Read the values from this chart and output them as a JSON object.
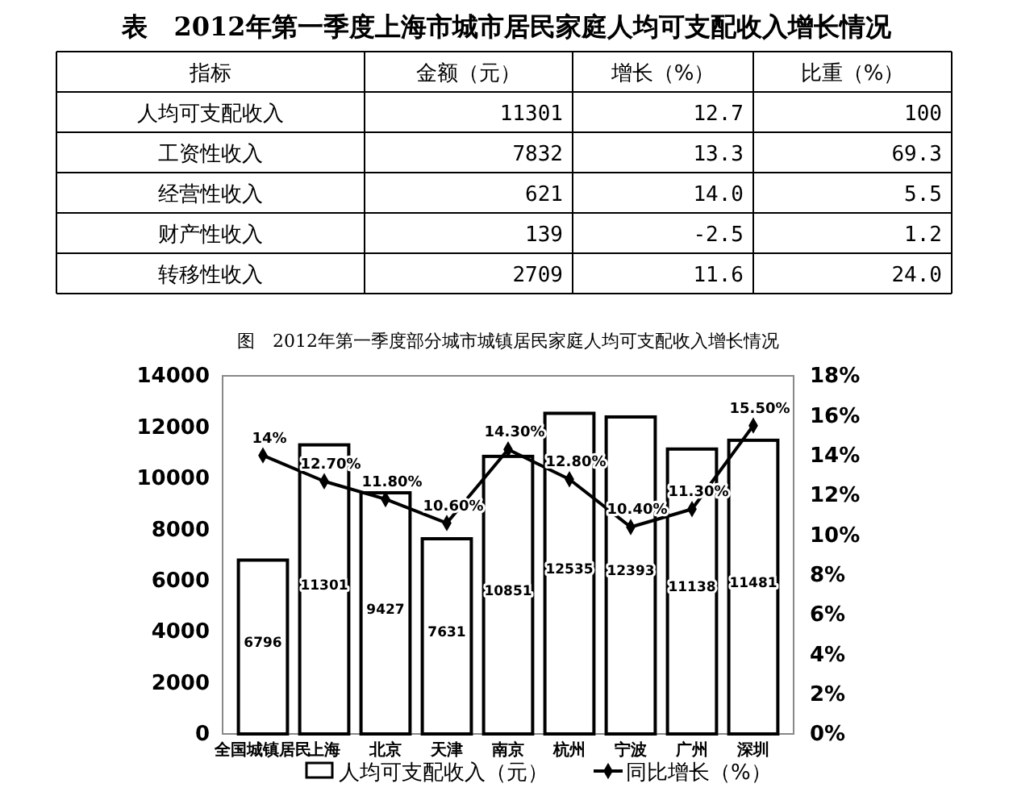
{
  "chart_data": [
    {
      "type": "other",
      "title": "表　2012年第一季度上海市城市居民家庭人均可支配收入增长情况",
      "xlabel": "指标",
      "categories": [
        "人均可支配收入",
        "工资性收入",
        "经营性收入",
        "财产性收入",
        "转移性收入"
      ],
      "series": [
        {
          "name": "金额（元）",
          "values": [
            11301,
            7832,
            621,
            139,
            2709
          ],
          "value_labels": [
            "11301",
            "7832",
            "621",
            "139",
            "2709"
          ]
        },
        {
          "name": "增长（%）",
          "values": [
            12.7,
            13.3,
            14.0,
            -2.5,
            11.6
          ],
          "value_labels": [
            "12.7",
            "13.3",
            "14.0",
            "-2.5",
            "11.6"
          ]
        },
        {
          "name": "比重（%）",
          "values": [
            100,
            69.3,
            5.5,
            1.2,
            24.0
          ],
          "value_labels": [
            "100",
            "69.3",
            "5.5",
            "1.2",
            "24.0"
          ]
        }
      ]
    },
    {
      "type": "bar",
      "title": "图　2012年第一季度部分城市城镇居民家庭人均可支配收入增长情况",
      "categories": [
        "全国城镇居民",
        "上海",
        "北京",
        "天津",
        "南京",
        "杭州",
        "宁波",
        "广州",
        "深圳"
      ],
      "ylim": [
        0,
        14000
      ],
      "yticks": [
        0,
        2000,
        4000,
        6000,
        8000,
        10000,
        12000,
        14000
      ],
      "y2lim": [
        0,
        18
      ],
      "y2ticks": [
        {
          "value": 0,
          "label": "0%"
        },
        {
          "value": 2,
          "label": "2%"
        },
        {
          "value": 4,
          "label": "4%"
        },
        {
          "value": 6,
          "label": "6%"
        },
        {
          "value": 8,
          "label": "8%"
        },
        {
          "value": 10,
          "label": "10%"
        },
        {
          "value": 12,
          "label": "12%"
        },
        {
          "value": 14,
          "label": "14%"
        },
        {
          "value": 16,
          "label": "16%"
        },
        {
          "value": 18,
          "label": "18%"
        }
      ],
      "legend": "bottom",
      "marker": "diamond",
      "series": [
        {
          "name": "人均可支配收入（元）",
          "type": "bar",
          "color": "#ffffff",
          "values": [
            6796,
            11301,
            9427,
            7631,
            10851,
            12535,
            12393,
            11138,
            11481
          ],
          "value_labels": [
            "6796",
            "11301",
            "9427",
            "7631",
            "10851",
            "12535",
            "12393",
            "11138",
            "11481"
          ]
        },
        {
          "name": "同比增长（%）",
          "type": "line",
          "axis": "y2",
          "color": "#000000",
          "values": [
            14,
            12.7,
            11.8,
            10.6,
            14.3,
            12.8,
            10.4,
            11.3,
            15.5
          ],
          "value_labels": [
            "14%",
            "12.70%",
            "11.80%",
            "10.60%",
            "14.30%",
            "12.80%",
            "10.40%",
            "11.30%",
            "15.50%"
          ]
        }
      ]
    }
  ]
}
